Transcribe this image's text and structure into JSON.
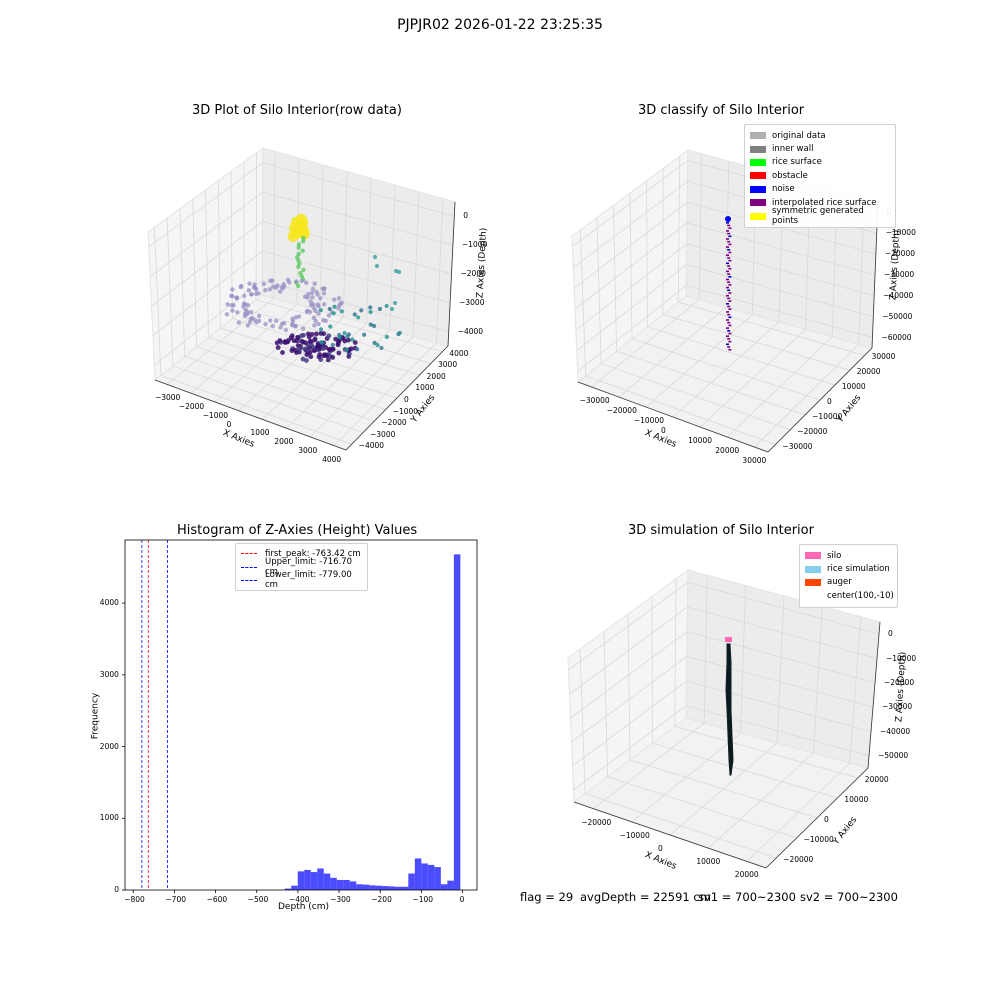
{
  "figure": {
    "suptitle": "PJPJR02 2026-01-22 23:25:35"
  },
  "panel1": {
    "title": "3D Plot of Silo Interior(row data)",
    "xlabel": "X Axies",
    "ylabel": "Y Axies",
    "zlabel": "Z Axies (Depth)",
    "x_ticks": [
      "−3000",
      "−2000",
      "−1000",
      "0",
      "1000",
      "2000",
      "3000",
      "4000"
    ],
    "y_ticks": [
      "4000",
      "3000",
      "2000",
      "1000",
      "0",
      "−1000",
      "−2000",
      "−3000",
      "−4000"
    ],
    "z_ticks": [
      "0",
      "−1000",
      "−2000",
      "−3000",
      "−4000"
    ]
  },
  "panel2": {
    "title": "3D classify of Silo Interior",
    "xlabel": "X Axies",
    "ylabel": "Y Axies",
    "zlabel": "Z Axies (Depth)",
    "x_ticks": [
      "−30000",
      "−20000",
      "−10000",
      "0",
      "10000",
      "20000",
      "30000"
    ],
    "y_ticks": [
      "30000",
      "20000",
      "10000",
      "0",
      "−10000",
      "−20000",
      "−30000"
    ],
    "z_ticks": [
      "0",
      "−10000",
      "−20000",
      "−30000",
      "−40000",
      "−50000",
      "−60000"
    ],
    "legend": [
      {
        "label": "original data",
        "color": "#b0b0b0"
      },
      {
        "label": "inner wall",
        "color": "#808080"
      },
      {
        "label": "rice surface",
        "color": "#00ff00"
      },
      {
        "label": "obstacle",
        "color": "#ff0000"
      },
      {
        "label": "noise",
        "color": "#0000ff"
      },
      {
        "label": "interpolated rice surface",
        "color": "#800080"
      },
      {
        "label": "symmetric generated points",
        "color": "#ffff00"
      }
    ]
  },
  "panel4": {
    "title": "3D simulation of Silo Interior",
    "xlabel": "X Axies",
    "ylabel": "Y Axies",
    "zlabel": "Z Axies (Depth)",
    "x_ticks": [
      "−20000",
      "−10000",
      "0",
      "10000",
      "20000"
    ],
    "y_ticks": [
      "20000",
      "10000",
      "0",
      "−10000",
      "−20000"
    ],
    "z_ticks": [
      "0",
      "−10000",
      "−20000",
      "−30000",
      "−40000",
      "−50000"
    ],
    "legend": [
      {
        "label": "silo",
        "color": "#ff69b4"
      },
      {
        "label": "rice simulation",
        "color": "#87ceeb"
      },
      {
        "label": "auger",
        "color": "#ff4500"
      },
      {
        "label": "center(100,-10)",
        "color": ""
      }
    ]
  },
  "footer": {
    "flag": "flag = 29",
    "avg_depth": "avgDepth = 22591 cm",
    "sv1": "sv1 = 700~2300",
    "sv2": "sv2 = 700~2300"
  },
  "chart_data": [
    {
      "type": "scatter",
      "title": "3D Plot of Silo Interior(row data)",
      "projection": "3d",
      "xlabel": "X Axies",
      "ylabel": "Y Axies",
      "zlabel": "Z Axies (Depth)",
      "xlim": [
        -3500,
        4000
      ],
      "ylim": [
        -4000,
        4000
      ],
      "zlim": [
        -4500,
        0
      ],
      "colormap": "viridis (by depth)",
      "note": "raw point cloud; yellow cluster near the top (z ~ -800), points descending to a bowl around z ~ -3500 to -4200"
    },
    {
      "type": "scatter",
      "title": "3D classify of Silo Interior",
      "projection": "3d",
      "xlabel": "X Axies",
      "ylabel": "Y Axies",
      "zlabel": "Z Axies (Depth)",
      "xlim": [
        -30000,
        30000
      ],
      "ylim": [
        -30000,
        30000
      ],
      "zlim": [
        -60000,
        0
      ],
      "series": [
        {
          "name": "original data"
        },
        {
          "name": "inner wall"
        },
        {
          "name": "rice surface"
        },
        {
          "name": "obstacle"
        },
        {
          "name": "noise"
        },
        {
          "name": "interpolated rice surface"
        },
        {
          "name": "symmetric generated points"
        }
      ]
    },
    {
      "type": "bar",
      "title": "Histogram of Z-Axies (Height) Values",
      "xlabel": "Depth (cm)",
      "ylabel": "Frequency",
      "xlim": [
        -820,
        35
      ],
      "ylim": [
        0,
        4880
      ],
      "x_ticks": [
        -800,
        -700,
        -600,
        -500,
        -400,
        -300,
        -200,
        -100,
        0
      ],
      "y_ticks": [
        0,
        1000,
        2000,
        3000,
        4000
      ],
      "bin_width": 15.8,
      "bin_starts": [
        -432,
        -416.2,
        -400.4,
        -384.6,
        -368.8,
        -353,
        -337.2,
        -321.4,
        -305.6,
        -289.8,
        -274,
        -258.2,
        -242.4,
        -226.6,
        -210.8,
        -195,
        -179.2,
        -163.4,
        -147.6,
        -131.8,
        -116,
        -100.2,
        -84.4,
        -68.6,
        -52.8,
        -37,
        -21.2,
        -5.4
      ],
      "values": [
        20,
        60,
        260,
        280,
        250,
        300,
        230,
        170,
        140,
        140,
        120,
        80,
        75,
        65,
        60,
        55,
        50,
        45,
        45,
        230,
        440,
        370,
        350,
        320,
        80,
        130,
        4680,
        0
      ],
      "bar_color": "#0000ff",
      "vlines": [
        {
          "label": "first_peak: -763.42 cm",
          "x": -763.42,
          "color": "#ff0000"
        },
        {
          "label": "Upper_limit: -716.70 cm",
          "x": -716.7,
          "color": "#0000ff"
        },
        {
          "label": "Lower_limit: -779.00 cm",
          "x": -779.0,
          "color": "#0000ff"
        }
      ],
      "legend_position": "top-center"
    },
    {
      "type": "surface",
      "title": "3D simulation of Silo Interior",
      "projection": "3d",
      "xlabel": "X Axies",
      "ylabel": "Y Axies",
      "zlabel": "Z Axies (Depth)",
      "xlim": [
        -25000,
        25000
      ],
      "ylim": [
        -25000,
        25000
      ],
      "zlim": [
        -55000,
        0
      ],
      "series": [
        {
          "name": "silo"
        },
        {
          "name": "rice simulation"
        },
        {
          "name": "auger"
        },
        {
          "name": "center(100,-10)"
        }
      ]
    }
  ]
}
